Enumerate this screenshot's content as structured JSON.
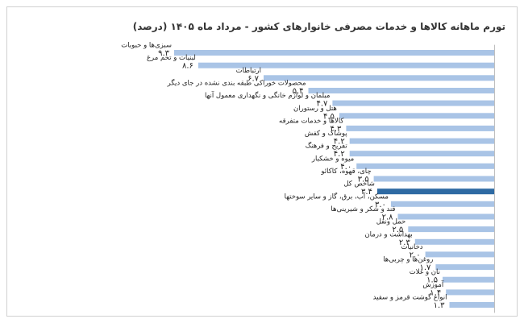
{
  "chart_data": {
    "type": "bar",
    "orientation": "horizontal",
    "title": "تورم ماهانه کالاها و خدمات مصرفی خانوارهای کشور - مرداد ماه ۱۴۰۵ (درصد)",
    "categories": [
      "سبزی‌ها و حبوبات",
      "لبنیات و تخم مرغ",
      "ارتباطات",
      "محصولات خوراکی طبقه بندی نشده در جای دیگر",
      "مبلمان و لوازم خانگی و نگهداری معمول آنها",
      "هتل و رستوران",
      "کالاها و خدمات متفرقه",
      "پوشاک و کفش",
      "تفریح و فرهنگ",
      "میوه و خشکبار",
      "چای، قهوه، کاکائو",
      "شاخص کل",
      "مسکن، آب، برق، گاز و سایر سوختها",
      "قند و شکر و شیرینی‌ها",
      "حمل ونقل",
      "بهداشت و درمان",
      "دخانیات",
      "روغن‌ها و چربی‌ها",
      "نان و غلات",
      "آموزش",
      "انواع گوشت قرمز و سفید"
    ],
    "values": [
      9.3,
      8.6,
      6.7,
      5.4,
      4.7,
      4.5,
      4.3,
      4.2,
      4.2,
      4.0,
      3.5,
      3.4,
      3.0,
      2.8,
      2.5,
      2.3,
      2.0,
      1.7,
      1.5,
      1.4,
      1.3
    ],
    "value_labels": [
      "۹.۳",
      "۸.۶",
      "۶.۷",
      "۵.۴",
      "۴.۷",
      "۴.۵",
      "۴.۳",
      "۴.۲",
      "۴.۲",
      "۴.۰",
      "۳.۵",
      "۳.۴",
      "۳.۰",
      "۲.۸",
      "۲.۵",
      "۲.۳",
      "۲.۰",
      "۱.۷",
      "۱.۵",
      "۱.۴",
      "۱.۳"
    ],
    "highlight_category": "شاخص کل",
    "xlim": [
      0,
      9.3
    ],
    "grid": false,
    "legend": "none",
    "colors": {
      "bar": "#a9c4e6",
      "highlight": "#2e6aa3",
      "axis": "#bfbfbf"
    }
  }
}
